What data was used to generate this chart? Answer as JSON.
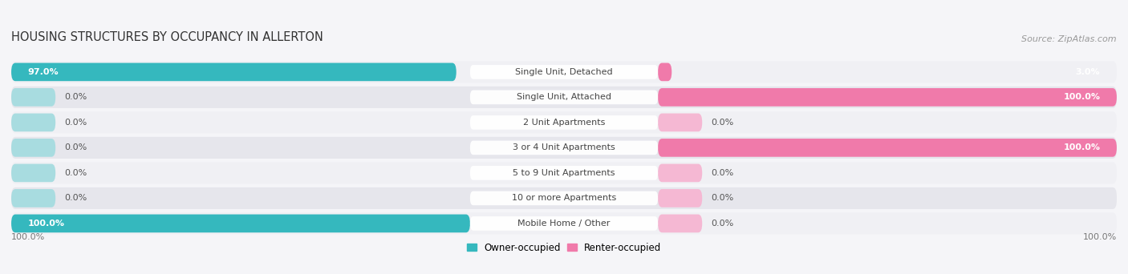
{
  "title": "HOUSING STRUCTURES BY OCCUPANCY IN ALLERTON",
  "source": "Source: ZipAtlas.com",
  "categories": [
    "Single Unit, Detached",
    "Single Unit, Attached",
    "2 Unit Apartments",
    "3 or 4 Unit Apartments",
    "5 to 9 Unit Apartments",
    "10 or more Apartments",
    "Mobile Home / Other"
  ],
  "owner_values": [
    97.0,
    0.0,
    0.0,
    0.0,
    0.0,
    0.0,
    100.0
  ],
  "renter_values": [
    3.0,
    100.0,
    0.0,
    100.0,
    0.0,
    0.0,
    0.0
  ],
  "owner_color": "#35b8be",
  "renter_color": "#f07aaa",
  "owner_color_zero": "#a8dce0",
  "renter_color_zero": "#f5b8d3",
  "owner_label": "Owner-occupied",
  "renter_label": "Renter-occupied",
  "row_bg_light": "#f0f0f4",
  "row_bg_dark": "#e6e6ec",
  "figure_bg": "#f5f5f8",
  "label_left_pct": "100.0%",
  "label_right_pct": "100.0%",
  "title_fontsize": 10.5,
  "source_fontsize": 8,
  "bar_label_fontsize": 8,
  "cat_label_fontsize": 8
}
